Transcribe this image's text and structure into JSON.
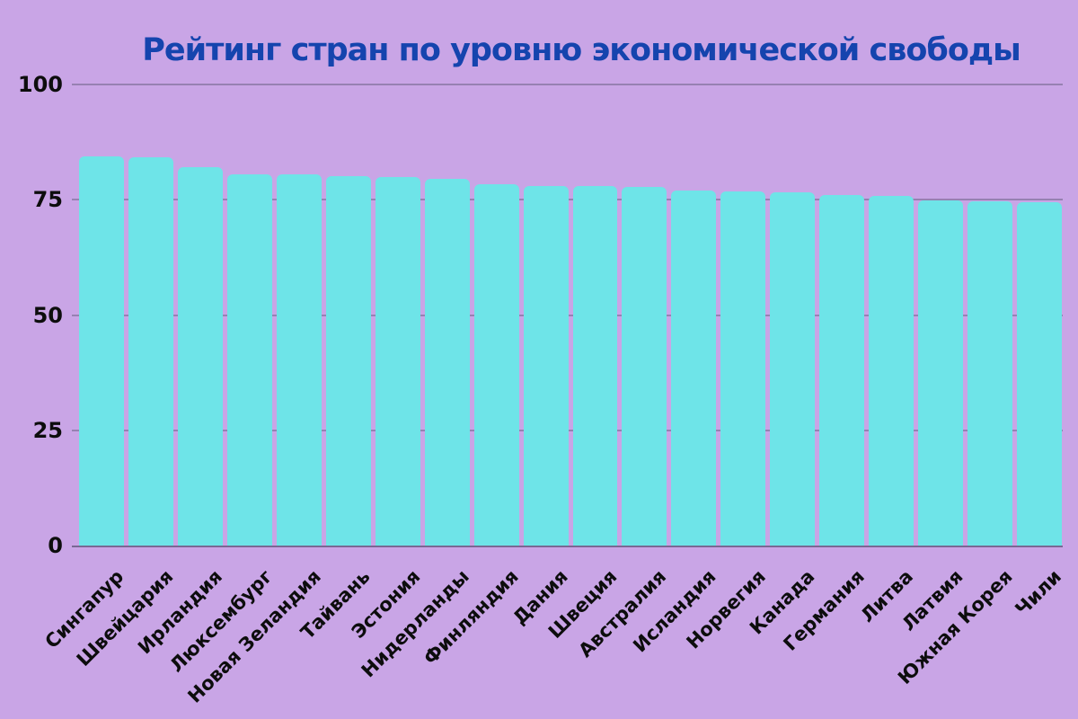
{
  "chart_data": {
    "type": "bar",
    "title": "Рейтинг стран по уровню экономической свободы",
    "categories": [
      "Сингапур",
      "Швейцария",
      "Ирландия",
      "Люксембург",
      "Новая Зеландия",
      "Тайвань",
      "Эстония",
      "Нидерланды",
      "Финляндия",
      "Дания",
      "Швеция",
      "Австралия",
      "Исландия",
      "Норвегия",
      "Канада",
      "Германия",
      "Литва",
      "Латвия",
      "Южная Корея",
      "Чили"
    ],
    "values": [
      84.4,
      84.2,
      82.0,
      80.6,
      80.6,
      80.1,
      80.0,
      79.5,
      78.3,
      78.0,
      77.9,
      77.7,
      77.0,
      76.9,
      76.6,
      76.1,
      75.8,
      74.8,
      74.6,
      74.4
    ],
    "xlabel": "",
    "ylabel": "",
    "ylim": [
      0,
      100
    ],
    "yticks": [
      0,
      25,
      50,
      75,
      100
    ],
    "legend": "none",
    "grid": "horizontal-behind-bars",
    "x_label_rotation_deg": 45,
    "colors": {
      "background": "#c9a5e6",
      "bar": "#6ee4e8",
      "title": "#1544ae",
      "tick_label": "#0d0d0d",
      "gridline": "rgba(70,70,95,0.38)",
      "axis_line": "rgba(55,55,80,0.55)"
    }
  }
}
